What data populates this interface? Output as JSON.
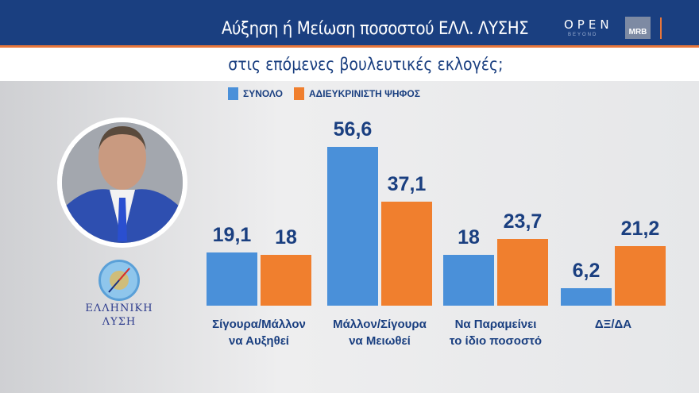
{
  "header": {
    "title": "Αύξηση ή Μείωση ποσοστού ΕΛΛ. ΛΥΣΗΣ",
    "subtitle": "στις επόμενες βουλευτικές εκλογές;",
    "brand": "OPEN",
    "brand_sub": "BEYOND",
    "pollster": "MRB"
  },
  "party": {
    "name_line1": "ΕΛΛΗΝΙΚΗ",
    "name_line2": "ΛΥΣΗ"
  },
  "chart_data": {
    "type": "bar",
    "title": "Αύξηση ή Μείωση ποσοστού ΕΛΛ. ΛΥΣΗΣ στις επόμενες βουλευτικές εκλογές;",
    "categories": [
      [
        "Σίγουρα/Μάλλον",
        "να Αυξηθεί"
      ],
      [
        "Μάλλον/Σίγουρα",
        "να Μειωθεί"
      ],
      [
        "Να Παραμείνει",
        "το ίδιο ποσοστό"
      ],
      [
        "ΔΞ/ΔΑ",
        ""
      ]
    ],
    "series": [
      {
        "name": "ΣΥΝΟΛΟ",
        "color": "#4a90d9",
        "values": [
          19.1,
          56.6,
          18,
          6.2
        ],
        "labels": [
          "19,1",
          "56,6",
          "18",
          "6,2"
        ]
      },
      {
        "name": "ΑΔΙΕΥΚΡΙΝΙΣΤΗ ΨΗΦΟΣ",
        "color": "#f07f2e",
        "values": [
          18,
          37.1,
          23.7,
          21.2
        ],
        "labels": [
          "18",
          "37,1",
          "23,7",
          "21,2"
        ]
      }
    ],
    "legend": "top",
    "ylim": [
      0,
      60
    ],
    "xlabel": "",
    "ylabel": ""
  }
}
